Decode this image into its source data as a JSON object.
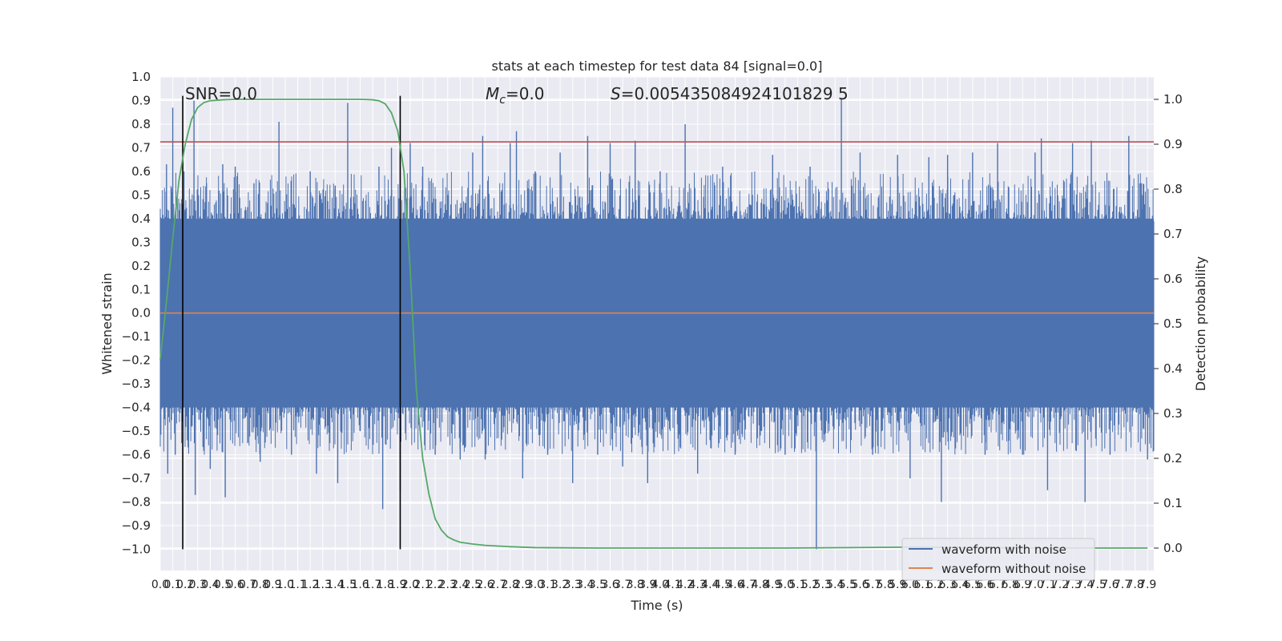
{
  "chart_data": {
    "type": "line",
    "title": "stats at each timestep for test data 84 [signal=0.0]",
    "xlabel": "Time (s)",
    "ylabel": "Whitened strain",
    "ylabel_right": "Detection probability",
    "xlim": [
      0.0,
      7.95
    ],
    "ylim": [
      -1.09,
      1.0
    ],
    "ylim_right": [
      -0.05,
      1.05
    ],
    "x_ticks": [
      0.0,
      0.1,
      0.2,
      0.3,
      0.4,
      0.5,
      0.6,
      0.7,
      0.8,
      0.9,
      1.0,
      1.1,
      1.2,
      1.3,
      1.4,
      1.5,
      1.6,
      1.7,
      1.8,
      1.9,
      2.0,
      2.1,
      2.2,
      2.3,
      2.4,
      2.5,
      2.6,
      2.7,
      2.8,
      2.9,
      3.0,
      3.1,
      3.2,
      3.3,
      3.4,
      3.5,
      3.6,
      3.7,
      3.8,
      3.9,
      4.0,
      4.1,
      4.2,
      4.3,
      4.4,
      4.5,
      4.6,
      4.7,
      4.8,
      4.9,
      5.0,
      5.1,
      5.2,
      5.3,
      5.4,
      5.5,
      5.6,
      5.7,
      5.8,
      5.9,
      6.0,
      6.1,
      6.2,
      6.3,
      6.4,
      6.5,
      6.6,
      6.7,
      6.8,
      6.9,
      7.0,
      7.1,
      7.2,
      7.3,
      7.4,
      7.5,
      7.6,
      7.7,
      7.8,
      7.9
    ],
    "y_ticks": [
      1.0,
      0.9,
      0.8,
      0.7,
      0.6,
      0.5,
      0.4,
      0.3,
      0.2,
      0.1,
      0.0,
      -0.1,
      -0.2,
      -0.3,
      -0.4,
      -0.5,
      -0.6,
      -0.7,
      -0.8,
      -0.9,
      -1.0
    ],
    "y_ticks_right": [
      1.0,
      0.9,
      0.8,
      0.7,
      0.6,
      0.5,
      0.4,
      0.3,
      0.2,
      0.1,
      0.0
    ],
    "annotations": {
      "snr": "SNR=0.0",
      "mc_symbol": "M",
      "mc_sub": "c",
      "mc_value": "=0.0",
      "s_symbol": "S",
      "s_value": "=0.005435084924101829 5"
    },
    "series": [
      {
        "name": "waveform with noise",
        "axis": "left",
        "color": "#4c72b0",
        "style": "noise band",
        "band": [
          -0.4,
          0.4
        ],
        "spikes": [
          [
            0.05,
            0.63
          ],
          [
            0.06,
            -0.68
          ],
          [
            0.1,
            0.87
          ],
          [
            0.12,
            -0.6
          ],
          [
            0.19,
            0.6
          ],
          [
            0.2,
            -0.45
          ],
          [
            0.27,
            0.9
          ],
          [
            0.28,
            -0.77
          ],
          [
            0.37,
            0.55
          ],
          [
            0.4,
            -0.66
          ],
          [
            0.5,
            0.63
          ],
          [
            0.52,
            -0.78
          ],
          [
            0.6,
            0.62
          ],
          [
            0.7,
            -0.55
          ],
          [
            0.75,
            0.55
          ],
          [
            0.8,
            -0.63
          ],
          [
            0.95,
            0.81
          ],
          [
            1.05,
            -0.6
          ],
          [
            1.2,
            0.6
          ],
          [
            1.25,
            -0.68
          ],
          [
            1.4,
            0.54
          ],
          [
            1.42,
            -0.72
          ],
          [
            1.5,
            0.89
          ],
          [
            1.6,
            -0.5
          ],
          [
            1.75,
            0.62
          ],
          [
            1.78,
            -0.83
          ],
          [
            1.85,
            0.7
          ],
          [
            1.92,
            -0.75
          ],
          [
            2.0,
            0.72
          ],
          [
            2.1,
            0.62
          ],
          [
            2.2,
            -0.6
          ],
          [
            2.3,
            0.5
          ],
          [
            2.4,
            -0.62
          ],
          [
            2.5,
            0.68
          ],
          [
            2.58,
            0.75
          ],
          [
            2.6,
            -0.62
          ],
          [
            2.8,
            0.72
          ],
          [
            2.85,
            0.77
          ],
          [
            2.9,
            -0.7
          ],
          [
            3.0,
            0.6
          ],
          [
            3.1,
            -0.6
          ],
          [
            3.2,
            0.68
          ],
          [
            3.3,
            -0.72
          ],
          [
            3.42,
            0.75
          ],
          [
            3.5,
            -0.6
          ],
          [
            3.6,
            0.72
          ],
          [
            3.7,
            -0.65
          ],
          [
            3.8,
            0.73
          ],
          [
            3.9,
            -0.72
          ],
          [
            4.0,
            0.6
          ],
          [
            4.2,
            0.8
          ],
          [
            4.3,
            -0.68
          ],
          [
            4.5,
            0.62
          ],
          [
            4.6,
            -0.6
          ],
          [
            4.9,
            0.67
          ],
          [
            5.0,
            -0.6
          ],
          [
            5.2,
            0.62
          ],
          [
            5.25,
            -1.0
          ],
          [
            5.45,
            0.91
          ],
          [
            5.6,
            0.68
          ],
          [
            5.7,
            -0.6
          ],
          [
            5.9,
            0.67
          ],
          [
            6.0,
            -0.7
          ],
          [
            6.15,
            0.66
          ],
          [
            6.25,
            -0.8
          ],
          [
            6.3,
            0.67
          ],
          [
            6.5,
            0.68
          ],
          [
            6.6,
            -0.6
          ],
          [
            6.7,
            0.72
          ],
          [
            6.9,
            -0.6
          ],
          [
            7.0,
            0.68
          ],
          [
            7.05,
            0.74
          ],
          [
            7.1,
            -0.75
          ],
          [
            7.3,
            0.72
          ],
          [
            7.4,
            -0.8
          ],
          [
            7.45,
            0.73
          ],
          [
            7.6,
            -0.6
          ],
          [
            7.75,
            0.75
          ],
          [
            7.85,
            0.55
          ],
          [
            7.9,
            -0.62
          ]
        ]
      },
      {
        "name": "waveform without noise",
        "axis": "left",
        "color": "#dd8452",
        "x": [
          0.0,
          7.95
        ],
        "y": [
          0.0,
          0.0
        ]
      },
      {
        "name": "detection probability",
        "axis": "right",
        "color": "#55a868",
        "x": [
          0.0,
          0.05,
          0.1,
          0.15,
          0.2,
          0.25,
          0.3,
          0.35,
          0.4,
          0.5,
          0.6,
          0.8,
          1.0,
          1.2,
          1.4,
          1.6,
          1.7,
          1.75,
          1.8,
          1.85,
          1.9,
          1.95,
          2.0,
          2.05,
          2.1,
          2.15,
          2.2,
          2.25,
          2.3,
          2.35,
          2.4,
          2.5,
          2.6,
          2.8,
          3.0,
          3.5,
          4.0,
          5.0,
          6.0,
          7.0,
          7.9
        ],
        "y": [
          0.42,
          0.55,
          0.69,
          0.82,
          0.9,
          0.955,
          0.982,
          0.993,
          0.997,
          0.999,
          1.0,
          1.0,
          1.0,
          1.0,
          1.0,
          1.0,
          0.999,
          0.997,
          0.99,
          0.97,
          0.93,
          0.84,
          0.62,
          0.35,
          0.2,
          0.12,
          0.065,
          0.04,
          0.025,
          0.018,
          0.013,
          0.009,
          0.006,
          0.003,
          0.001,
          0.0,
          0.0,
          0.0,
          0.002,
          0.0,
          0.0
        ]
      }
    ],
    "hlines": [
      {
        "axis": "left",
        "y": 0.725,
        "color": "#c44e52"
      }
    ],
    "vlines": [
      {
        "x": 0.18,
        "ymin": -1.0,
        "ymax": 0.92,
        "color": "#000000"
      },
      {
        "x": 1.92,
        "ymin": -1.0,
        "ymax": 0.92,
        "color": "#000000"
      }
    ],
    "legend": {
      "position": "bottom-right",
      "entries": [
        "waveform with noise",
        "waveform without noise"
      ]
    },
    "grid": true
  }
}
